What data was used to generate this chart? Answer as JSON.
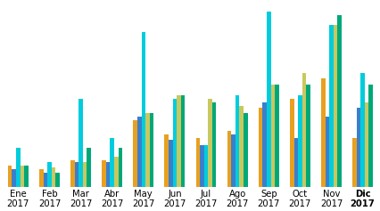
{
  "months": [
    "Ene\n2017",
    "Feb\n2017",
    "Mar\n2017",
    "Abr\n2017",
    "May\n2017",
    "Jun\n2017",
    "Jul\n2017",
    "Ago\n2017",
    "Sep\n2017",
    "Oct\n2017",
    "Nov\n2017",
    "Dic\n2017"
  ],
  "series": {
    "orange": [
      12,
      10,
      15,
      15,
      38,
      30,
      28,
      32,
      45,
      50,
      62,
      28
    ],
    "blue": [
      10,
      8,
      14,
      14,
      40,
      27,
      24,
      30,
      48,
      28,
      40,
      45
    ],
    "cyan": [
      22,
      14,
      50,
      28,
      88,
      50,
      24,
      52,
      100,
      52,
      92,
      65
    ],
    "khaki": [
      12,
      11,
      14,
      17,
      42,
      52,
      50,
      46,
      58,
      65,
      92,
      48
    ],
    "teal": [
      12,
      8,
      22,
      22,
      42,
      52,
      48,
      42,
      58,
      58,
      98,
      58
    ]
  },
  "colors": [
    "#E8A020",
    "#3B7FCC",
    "#00CCDD",
    "#C8C860",
    "#00A878"
  ],
  "bar_width": 0.13,
  "background_color": "#ffffff"
}
